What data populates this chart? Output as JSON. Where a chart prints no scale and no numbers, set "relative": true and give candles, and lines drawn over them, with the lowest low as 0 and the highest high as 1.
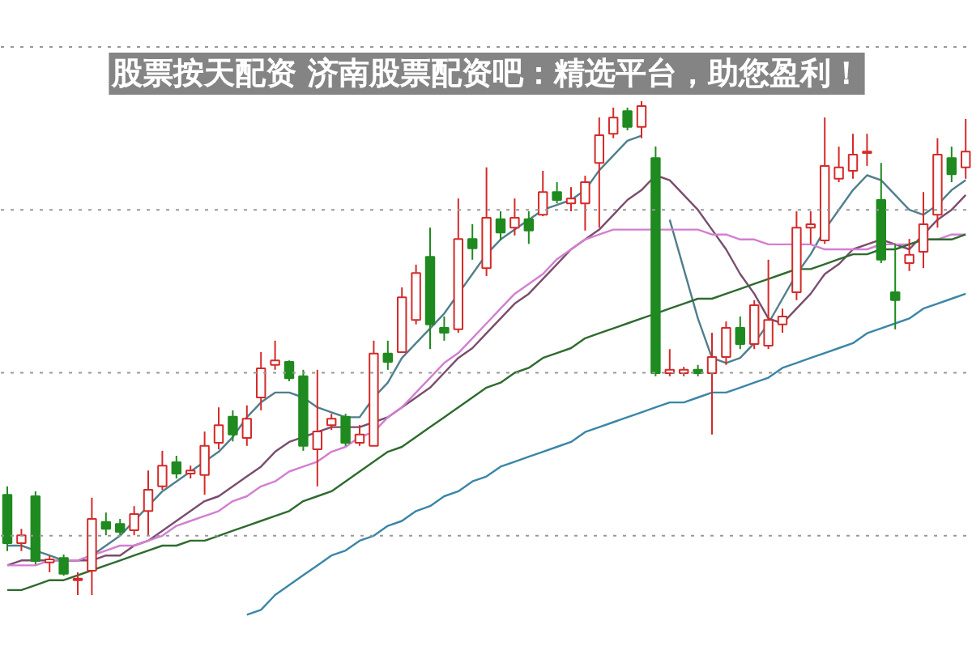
{
  "chart_data": {
    "type": "candlestick",
    "relative": true,
    "tick_labels": false,
    "title": "股票按天配资 济南股票配资吧：精选平台，助您盈利！",
    "categories": [
      null,
      null,
      null,
      null,
      null,
      null,
      null,
      null,
      null,
      null,
      null,
      null,
      null,
      null,
      null,
      null,
      null,
      null,
      null,
      null,
      null,
      null,
      null,
      null,
      null,
      null,
      null,
      null,
      null,
      null,
      null,
      null,
      null,
      null,
      null,
      null,
      null,
      null,
      null,
      null,
      null,
      null,
      null,
      null,
      null,
      null,
      null,
      null,
      null,
      null,
      null,
      null,
      null,
      null,
      null,
      null,
      null,
      null,
      null,
      null,
      null,
      null,
      null,
      null,
      null,
      null,
      null,
      null,
      null
    ],
    "ohlc": [
      [
        0.203,
        0.22,
        0.089,
        0.105
      ],
      [
        0.105,
        0.134,
        0.089,
        0.121
      ],
      [
        0.2,
        0.21,
        0.062,
        0.069
      ],
      [
        0.066,
        0.079,
        0.046,
        0.072
      ],
      [
        0.075,
        0.082,
        0.039,
        0.043
      ],
      [
        0.03,
        0.046,
        0,
        0.033
      ],
      [
        0.049,
        0.197,
        0,
        0.154
      ],
      [
        0.148,
        0.167,
        0.121,
        0.134
      ],
      [
        0.144,
        0.154,
        0.121,
        0.128
      ],
      [
        0.131,
        0.18,
        0.121,
        0.164
      ],
      [
        0.17,
        0.252,
        0.121,
        0.213
      ],
      [
        0.22,
        0.292,
        0.213,
        0.262
      ],
      [
        0.269,
        0.282,
        0.236,
        0.246
      ],
      [
        0.246,
        0.262,
        0.236,
        0.252
      ],
      [
        0.243,
        0.331,
        0.203,
        0.302
      ],
      [
        0.308,
        0.38,
        0.295,
        0.344
      ],
      [
        0.361,
        0.374,
        0.311,
        0.325
      ],
      [
        0.318,
        0.384,
        0.302,
        0.357
      ],
      [
        0.4,
        0.492,
        0.374,
        0.459
      ],
      [
        0.466,
        0.515,
        0.456,
        0.475
      ],
      [
        0.472,
        0.475,
        0.433,
        0.439
      ],
      [
        0.443,
        0.456,
        0.292,
        0.302
      ],
      [
        0.295,
        0.456,
        0.22,
        0.331
      ],
      [
        0.344,
        0.367,
        0.334,
        0.357
      ],
      [
        0.361,
        0.367,
        0.302,
        0.308
      ],
      [
        0.308,
        0.344,
        0.302,
        0.325
      ],
      [
        0.302,
        0.515,
        0.302,
        0.489
      ],
      [
        0.489,
        0.515,
        0.456,
        0.472
      ],
      [
        0.492,
        0.623,
        0.492,
        0.603
      ],
      [
        0.557,
        0.669,
        0.548,
        0.652
      ],
      [
        0.685,
        0.744,
        0.498,
        0.548
      ],
      [
        0.541,
        0.564,
        0.515,
        0.531
      ],
      [
        0.538,
        0.803,
        0.531,
        0.721
      ],
      [
        0.721,
        0.751,
        0.679,
        0.702
      ],
      [
        0.662,
        0.866,
        0.646,
        0.764
      ],
      [
        0.761,
        0.777,
        0.718,
        0.734
      ],
      [
        0.744,
        0.803,
        0.728,
        0.764
      ],
      [
        0.761,
        0.777,
        0.711,
        0.738
      ],
      [
        0.77,
        0.859,
        0.767,
        0.816
      ],
      [
        0.816,
        0.836,
        0.793,
        0.8
      ],
      [
        0.793,
        0.826,
        0.777,
        0.803
      ],
      [
        0.793,
        0.849,
        0.738,
        0.836
      ],
      [
        0.875,
        0.967,
        0.744,
        0.931
      ],
      [
        0.934,
        0.987,
        0.925,
        0.967
      ],
      [
        0.98,
        0.987,
        0.941,
        0.948
      ],
      [
        0.948,
        1,
        0.925,
        0.99
      ],
      [
        0.885,
        0.908,
        0.443,
        0.449
      ],
      [
        0.449,
        0.498,
        0.443,
        0.456
      ],
      [
        0.449,
        0.462,
        0.443,
        0.456
      ],
      [
        0.456,
        0.466,
        0.443,
        0.449
      ],
      [
        0.449,
        0.531,
        0.325,
        0.482
      ],
      [
        0.482,
        0.554,
        0.466,
        0.541
      ],
      [
        0.541,
        0.564,
        0.498,
        0.508
      ],
      [
        0.508,
        0.597,
        0.498,
        0.587
      ],
      [
        0.505,
        0.679,
        0.498,
        0.557
      ],
      [
        0.548,
        0.58,
        0.531,
        0.564
      ],
      [
        0.613,
        0.777,
        0.597,
        0.744
      ],
      [
        0.744,
        0.777,
        0.711,
        0.751
      ],
      [
        0.718,
        0.967,
        0.711,
        0.869
      ],
      [
        0.843,
        0.908,
        0.836,
        0.866
      ],
      [
        0.859,
        0.934,
        0.843,
        0.892
      ],
      [
        0.895,
        0.934,
        0.869,
        0.898
      ],
      [
        0.8,
        0.875,
        0.672,
        0.679
      ],
      [
        0.613,
        0.711,
        0.538,
        0.597
      ],
      [
        0.672,
        0.721,
        0.656,
        0.689
      ],
      [
        0.695,
        0.816,
        0.662,
        0.751
      ],
      [
        0.77,
        0.925,
        0.744,
        0.892
      ],
      [
        0.885,
        0.908,
        0.836,
        0.852
      ],
      [
        0.866,
        0.964,
        0.843,
        0.898
      ]
    ],
    "series": [
      {
        "type": "line",
        "color": "#4f7f8c",
        "values": [
          0.1,
          0.1,
          0.09,
          0.08,
          0.07,
          0.07,
          0.08,
          0.1,
          0.12,
          0.15,
          0.18,
          0.21,
          0.23,
          0.25,
          0.27,
          0.29,
          0.32,
          0.36,
          0.39,
          0.41,
          0.41,
          0.4,
          0.38,
          0.37,
          0.36,
          0.36,
          0.4,
          0.43,
          0.48,
          0.51,
          0.54,
          0.57,
          0.61,
          0.65,
          0.69,
          0.72,
          0.74,
          0.76,
          0.78,
          0.79,
          0.8,
          0.82,
          0.86,
          0.89,
          0.92,
          0.93,
          null,
          0.76,
          0.66,
          0.56,
          0.48,
          0.47,
          0.48,
          0.51,
          0.55,
          0.6,
          0.65,
          0.69,
          0.74,
          0.78,
          0.82,
          0.85,
          0.84,
          0.81,
          0.78,
          0.77,
          0.79,
          0.82,
          0.84
        ]
      },
      {
        "type": "line",
        "color": "#7a4d6e",
        "values": [
          0.06,
          0.07,
          0.07,
          0.07,
          0.07,
          0.07,
          0.07,
          0.08,
          0.08,
          0.1,
          0.11,
          0.13,
          0.15,
          0.17,
          0.19,
          0.2,
          0.22,
          0.24,
          0.26,
          0.29,
          0.31,
          0.32,
          0.33,
          0.34,
          0.34,
          0.34,
          0.35,
          0.36,
          0.38,
          0.4,
          0.42,
          0.45,
          0.48,
          0.5,
          0.53,
          0.56,
          0.59,
          0.61,
          0.64,
          0.67,
          0.7,
          0.72,
          0.74,
          0.77,
          0.8,
          0.82,
          0.85,
          0.84,
          0.81,
          0.78,
          0.74,
          0.7,
          0.65,
          0.61,
          0.56,
          0.55,
          0.58,
          0.61,
          0.65,
          0.67,
          0.7,
          0.71,
          0.72,
          0.71,
          0.7,
          0.73,
          0.76,
          0.78,
          0.81
        ]
      },
      {
        "type": "line",
        "color": "#d27fd2",
        "values": [
          0.06,
          0.06,
          0.06,
          0.07,
          0.07,
          0.07,
          0.08,
          0.09,
          0.1,
          0.1,
          0.11,
          0.12,
          0.14,
          0.15,
          0.16,
          0.17,
          0.19,
          0.2,
          0.22,
          0.23,
          0.25,
          0.26,
          0.27,
          0.29,
          0.3,
          0.32,
          0.33,
          0.36,
          0.38,
          0.41,
          0.44,
          0.47,
          0.49,
          0.52,
          0.55,
          0.58,
          0.61,
          0.63,
          0.65,
          0.68,
          0.7,
          0.72,
          0.73,
          0.74,
          0.74,
          0.74,
          0.74,
          0.74,
          0.74,
          0.74,
          0.73,
          0.73,
          0.72,
          0.72,
          0.71,
          0.71,
          0.71,
          0.71,
          0.7,
          0.7,
          0.7,
          0.7,
          0.71,
          0.71,
          0.71,
          0.72,
          0.72,
          0.73,
          0.73
        ]
      },
      {
        "type": "line",
        "color": "#2e6b2e",
        "values": [
          0.01,
          0.01,
          0.02,
          0.03,
          0.03,
          0.04,
          0.05,
          0.06,
          0.07,
          0.08,
          0.09,
          0.1,
          0.1,
          0.11,
          0.11,
          0.12,
          0.13,
          0.14,
          0.15,
          0.16,
          0.17,
          0.19,
          0.2,
          0.21,
          0.23,
          0.25,
          0.27,
          0.29,
          0.3,
          0.32,
          0.34,
          0.36,
          0.38,
          0.4,
          0.42,
          0.43,
          0.45,
          0.46,
          0.48,
          0.49,
          0.5,
          0.52,
          0.53,
          0.54,
          0.55,
          0.56,
          0.57,
          0.58,
          0.59,
          0.6,
          0.6,
          0.61,
          0.62,
          0.63,
          0.64,
          0.65,
          0.66,
          0.66,
          0.67,
          0.68,
          0.69,
          0.69,
          0.7,
          0.7,
          0.71,
          0.72,
          0.72,
          0.72,
          0.73
        ]
      },
      {
        "type": "line",
        "color": "#3a86a8",
        "values": [
          null,
          null,
          null,
          null,
          null,
          null,
          null,
          null,
          null,
          null,
          null,
          null,
          null,
          null,
          null,
          null,
          null,
          -0.04,
          -0.03,
          0.0,
          0.02,
          0.04,
          0.06,
          0.08,
          0.09,
          0.11,
          0.12,
          0.14,
          0.15,
          0.17,
          0.18,
          0.2,
          0.21,
          0.23,
          0.24,
          0.26,
          0.27,
          0.28,
          0.29,
          0.3,
          0.31,
          0.33,
          0.34,
          0.35,
          0.36,
          0.37,
          0.38,
          0.39,
          0.39,
          0.4,
          0.41,
          0.41,
          0.42,
          0.43,
          0.44,
          0.46,
          0.47,
          0.48,
          0.49,
          0.5,
          0.51,
          0.53,
          0.54,
          0.55,
          0.56,
          0.58,
          0.59,
          0.6,
          0.61
        ]
      }
    ],
    "ref_lines": [
      {
        "axis": "y",
        "value": 1.11,
        "color": "#999999",
        "line_style": "dotted"
      },
      {
        "axis": "y",
        "value": 0.78,
        "color": "#999999",
        "line_style": "dotted"
      },
      {
        "axis": "y",
        "value": 0.45,
        "color": "#999999",
        "line_style": "dotted"
      },
      {
        "axis": "y",
        "value": 0.12,
        "color": "#999999",
        "line_style": "dotted"
      }
    ]
  }
}
